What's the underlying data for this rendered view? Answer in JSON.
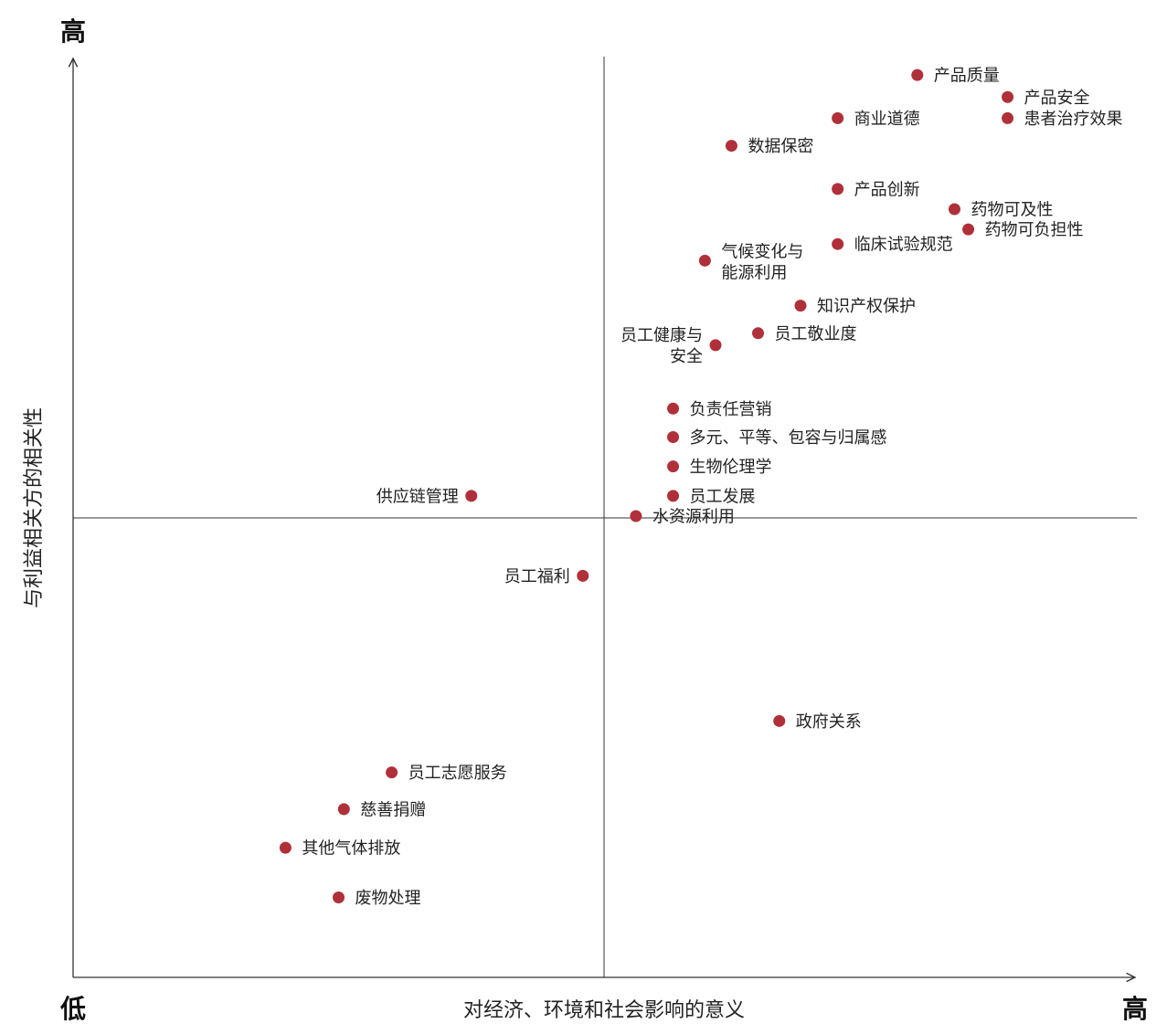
{
  "chart_data": {
    "type": "scatter",
    "title": "",
    "xlabel": "对经济、环境和社会影响的意义",
    "ylabel": "与利益相关方的相关性",
    "x_low_label": "低",
    "x_high_label": "高",
    "y_high_label": "高",
    "xlim": [
      0,
      100
    ],
    "ylim": [
      0,
      100
    ],
    "quadrant_divider": {
      "x": 50,
      "y": 50
    },
    "marker_color": "#b0303a",
    "axis_color": "#333333",
    "points": [
      {
        "label": "产品质量",
        "x": 79.5,
        "y": 98.2
      },
      {
        "label": "产品安全",
        "x": 88.0,
        "y": 95.8
      },
      {
        "label": "患者治疗效果",
        "x": 88.0,
        "y": 93.5
      },
      {
        "label": "商业道德",
        "x": 72.0,
        "y": 93.5
      },
      {
        "label": "数据保密",
        "x": 62.0,
        "y": 90.5
      },
      {
        "label": "产品创新",
        "x": 72.0,
        "y": 85.8
      },
      {
        "label": "药物可及性",
        "x": 83.0,
        "y": 83.6
      },
      {
        "label": "药物可负担性",
        "x": 84.3,
        "y": 81.4
      },
      {
        "label": "临床试验规范",
        "x": 72.0,
        "y": 79.8
      },
      {
        "label": "气候变化与\n能源利用",
        "x": 59.5,
        "y": 78.0
      },
      {
        "label": "知识产权保护",
        "x": 68.5,
        "y": 73.1
      },
      {
        "label": "员工敬业度",
        "x": 64.5,
        "y": 70.1
      },
      {
        "label": "员工健康与\n安全",
        "x": 60.5,
        "y": 68.8
      },
      {
        "label": "负责任营销",
        "x": 56.5,
        "y": 61.9
      },
      {
        "label": "多元、平等、包容与归属感",
        "x": 56.5,
        "y": 58.8
      },
      {
        "label": "生物伦理学",
        "x": 56.5,
        "y": 55.6
      },
      {
        "label": "员工发展",
        "x": 56.5,
        "y": 52.4
      },
      {
        "label": "水资源利用",
        "x": 53.0,
        "y": 50.2
      },
      {
        "label": "供应链管理",
        "x": 37.5,
        "y": 52.4
      },
      {
        "label": "员工福利",
        "x": 48.0,
        "y": 43.7
      },
      {
        "label": "政府关系",
        "x": 66.5,
        "y": 27.9
      },
      {
        "label": "员工志愿服务",
        "x": 30.0,
        "y": 22.3
      },
      {
        "label": "慈善捐赠",
        "x": 25.5,
        "y": 18.3
      },
      {
        "label": "其他气体排放",
        "x": 20.0,
        "y": 14.1
      },
      {
        "label": "废物处理",
        "x": 25.0,
        "y": 8.7
      }
    ]
  }
}
